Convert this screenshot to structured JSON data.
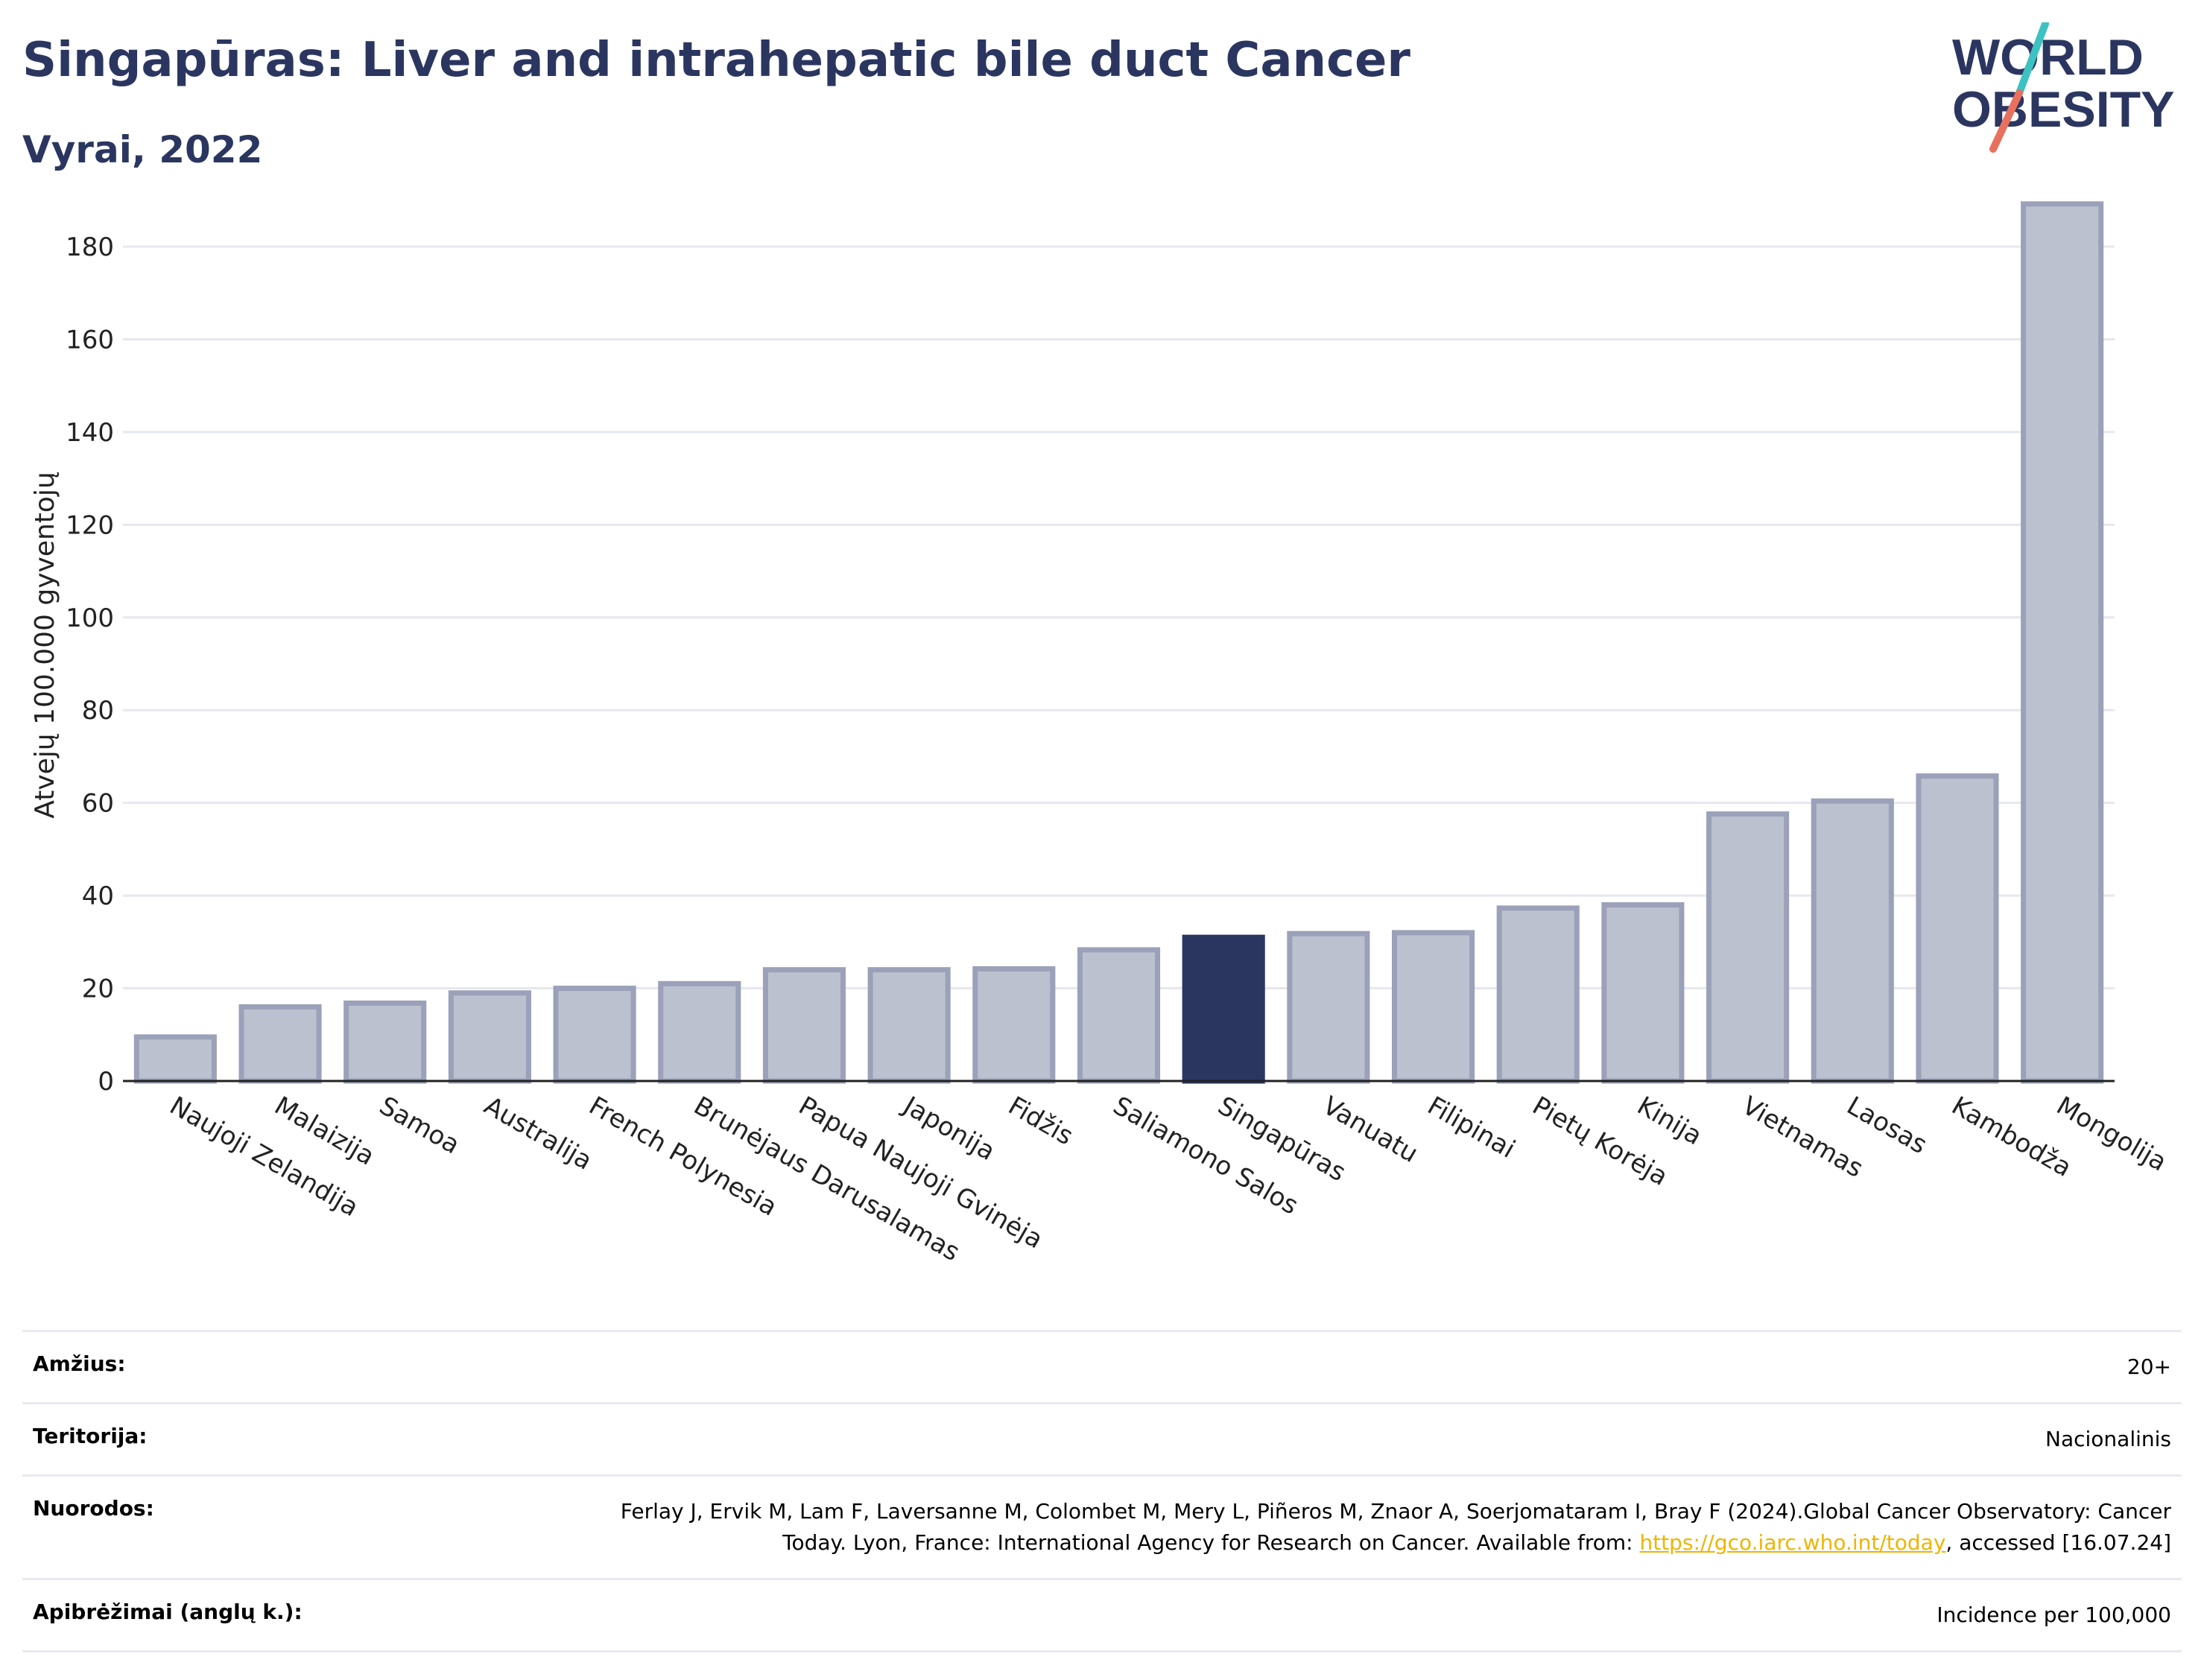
{
  "header": {
    "title": "Singapūras: Liver and intrahepatic bile duct Cancer",
    "subtitle": "Vyrai, 2022"
  },
  "logo": {
    "line1": "WORLD",
    "line2": "OBESITY",
    "colors": {
      "text": "#2b3660",
      "slash_teal": "#3ec1c1",
      "slash_coral": "#e8705f"
    }
  },
  "colors": {
    "bar": "#bcc1d0",
    "bar_stroke": "#9aa1b8",
    "highlight": "#2b3660",
    "grid": "#e6e8ef",
    "axis_text": "#222222"
  },
  "chart_data": {
    "type": "bar",
    "ylabel": "Atvejų 100.000 gyventojų",
    "ylim": [
      0,
      195
    ],
    "yticks": [
      0,
      20,
      40,
      60,
      80,
      100,
      120,
      140,
      160,
      180
    ],
    "grid": true,
    "highlight": "Singapūras",
    "categories": [
      "Naujoji Zelandija",
      "Malaizija",
      "Samoa",
      "Australija",
      "French Polynesia",
      "Brunėjaus Darusalamas",
      "Papua Naujoji Gvinėja",
      "Japonija",
      "Fidžis",
      "Saliamono Salos",
      "Singapūras",
      "Vanuatu",
      "Filipinai",
      "Pietų Korėja",
      "Kinija",
      "Vietnamas",
      "Laosas",
      "Kambodža",
      "Mongolija"
    ],
    "values": [
      9.5,
      16,
      16.8,
      19,
      20,
      21,
      24,
      24,
      24.2,
      28.3,
      31,
      31.8,
      32,
      37.3,
      38,
      57.6,
      60.4,
      65.8,
      189.2
    ]
  },
  "info": {
    "age_label": "Amžius:",
    "age_value": "20+",
    "territory_label": "Teritorija:",
    "territory_value": "Nacionalinis",
    "refs_label": "Nuorodos:",
    "refs_text1": "Ferlay J, Ervik M, Lam F, Laversanne M, Colombet M, Mery L, Piñeros M, Znaor A, Soerjomataram I, Bray F (2024).Global Cancer Observatory: Cancer Today. Lyon, France: International Agency for Research on Cancer. Available from: ",
    "refs_link": "https://gco.iarc.who.int/today",
    "refs_text2": ", accessed [16.07.24]",
    "definitions_label": "Apibrėžimai (anglų k.):",
    "definitions_value": "Incidence per 100,000"
  }
}
